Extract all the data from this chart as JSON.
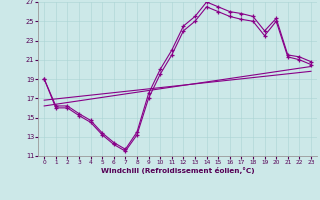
{
  "xlabel": "Windchill (Refroidissement éolien,°C)",
  "background_color": "#cce8e8",
  "line_color": "#880088",
  "xlim": [
    -0.5,
    23.5
  ],
  "ylim": [
    11,
    27
  ],
  "yticks": [
    11,
    13,
    15,
    17,
    19,
    21,
    23,
    25,
    27
  ],
  "xticks": [
    0,
    1,
    2,
    3,
    4,
    5,
    6,
    7,
    8,
    9,
    10,
    11,
    12,
    13,
    14,
    15,
    16,
    17,
    18,
    19,
    20,
    21,
    22,
    23
  ],
  "series": [
    {
      "x": [
        0,
        1,
        2,
        3,
        4,
        5,
        6,
        7,
        8,
        9,
        10,
        11,
        12,
        13,
        14,
        15,
        16,
        17,
        18,
        19,
        20,
        21,
        22,
        23
      ],
      "y": [
        19.0,
        16.0,
        16.0,
        15.2,
        14.5,
        13.2,
        12.2,
        11.5,
        13.2,
        17.0,
        19.5,
        21.5,
        24.0,
        25.0,
        26.5,
        26.0,
        25.5,
        25.2,
        25.0,
        23.5,
        25.0,
        21.3,
        21.0,
        20.5
      ],
      "marker": true
    },
    {
      "x": [
        0,
        1,
        2,
        3,
        4,
        5,
        6,
        7,
        8,
        9,
        10,
        11,
        12,
        13,
        14,
        15,
        16,
        17,
        18,
        19,
        20,
        21,
        22,
        23
      ],
      "y": [
        19.0,
        16.2,
        16.2,
        15.4,
        14.7,
        13.4,
        12.4,
        11.7,
        13.5,
        17.5,
        20.0,
        22.0,
        24.5,
        25.5,
        27.0,
        26.5,
        26.0,
        25.8,
        25.5,
        24.0,
        25.3,
        21.5,
        21.3,
        20.8
      ],
      "marker": true
    },
    {
      "x": [
        0,
        23
      ],
      "y": [
        16.2,
        20.3
      ],
      "marker": false
    },
    {
      "x": [
        0,
        23
      ],
      "y": [
        16.8,
        19.8
      ],
      "marker": false
    }
  ]
}
